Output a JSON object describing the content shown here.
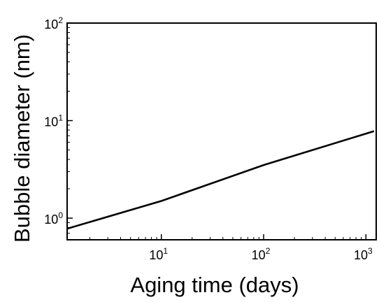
{
  "chart_data": {
    "type": "line",
    "xlabel": "Aging time (days)",
    "ylabel": "Bubble diameter (nm)",
    "xscale": "log",
    "yscale": "log",
    "xlim": [
      1.2,
      1260
    ],
    "ylim": [
      0.6,
      100
    ],
    "x_ticks": [
      {
        "value": 10,
        "base": "10",
        "exp": "1"
      },
      {
        "value": 100,
        "base": "10",
        "exp": "2"
      },
      {
        "value": 1000,
        "base": "10",
        "exp": "3"
      }
    ],
    "y_ticks": [
      {
        "value": 1,
        "base": "10",
        "exp": "0"
      },
      {
        "value": 10,
        "base": "10",
        "exp": "1"
      },
      {
        "value": 100,
        "base": "10",
        "exp": "2"
      }
    ],
    "grid": false,
    "legend": "none",
    "line_color": "#000000",
    "series": [
      {
        "x": [
          1.2,
          10,
          100,
          1200
        ],
        "y": [
          0.78,
          1.5,
          3.5,
          7.8
        ]
      }
    ]
  }
}
